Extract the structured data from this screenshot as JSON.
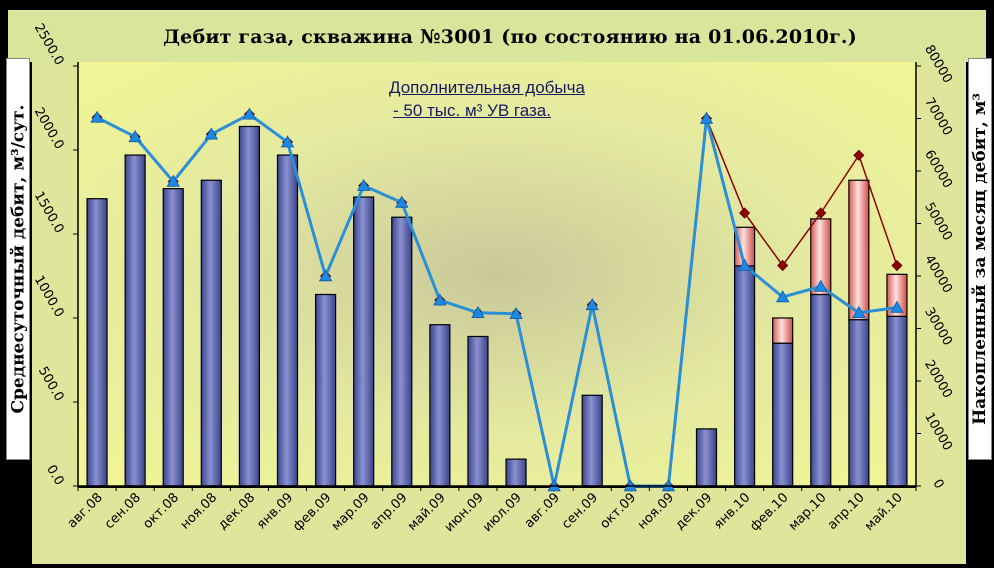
{
  "window": {
    "title": "Дебит газа, скважина №3001 (по состоянию  на 01.06.2010г.)"
  },
  "chart_data": {
    "type": "bar",
    "title": "Дебит газа, скважина №3001 (по состоянию  на 01.06.2010г.)",
    "ylabel_left": "Среднесуточный дебит, м³/сут.",
    "ylabel_right": "Накопленный за месяц дебит, м³",
    "annotation": [
      "Дополнительная добыча",
      "-  50 тыс. м³ УВ газа."
    ],
    "categories": [
      "авг.08",
      "сен.08",
      "окт.08",
      "ноя.08",
      "дек.08",
      "янв.09",
      "фев.09",
      "мар.09",
      "апр.09",
      "май.09",
      "июн.09",
      "июл.09",
      "авг.09",
      "сен.09",
      "окт.09",
      "ноя.09",
      "дек.09",
      "янв.10",
      "фев.10",
      "мар.10",
      "апр.10",
      "май.10"
    ],
    "ylim_left": [
      0,
      2500
    ],
    "ylim_right": [
      0,
      80000
    ],
    "yticks_left": [
      "0.0",
      "500.0",
      "1000.0",
      "1500.0",
      "2000.0",
      "2500.0"
    ],
    "yticks_right": [
      "0",
      "10000",
      "20000",
      "30000",
      "40000",
      "50000",
      "60000",
      "70000",
      "80000"
    ],
    "grid": false,
    "colors": {
      "base_bar": "#5a63b0",
      "extra_bar": "#f4b8b4",
      "cumulative_line": "#8b0000",
      "cumulative_base_line": "#2b8fd6",
      "plot_bg": "#e8ee94"
    },
    "series": [
      {
        "axis": "left",
        "type": "bar",
        "values": [
          1710,
          1970,
          1770,
          1820,
          2140,
          1970,
          1140,
          1720,
          1600,
          960,
          890,
          160,
          0,
          540,
          0,
          0,
          340,
          1310,
          850,
          1140,
          990,
          1010
        ]
      },
      {
        "axis": "left",
        "type": "bar",
        "values": [
          0,
          0,
          0,
          0,
          0,
          0,
          0,
          0,
          0,
          0,
          0,
          0,
          0,
          0,
          0,
          0,
          0,
          230,
          150,
          450,
          830,
          250
        ]
      },
      {
        "axis": "right",
        "type": "line",
        "values": [
          70200,
          66500,
          58000,
          67000,
          70800,
          65500,
          40000,
          57200,
          54000,
          35400,
          33000,
          32800,
          0,
          34500,
          0,
          0,
          70000,
          52000,
          42000,
          52000,
          63000,
          42000
        ]
      },
      {
        "axis": "right",
        "type": "line",
        "values": [
          70200,
          66500,
          58000,
          67000,
          70800,
          65500,
          40000,
          57200,
          54000,
          35400,
          33000,
          32800,
          0,
          34500,
          0,
          0,
          70000,
          42000,
          36000,
          38000,
          33000,
          34000
        ]
      }
    ]
  }
}
